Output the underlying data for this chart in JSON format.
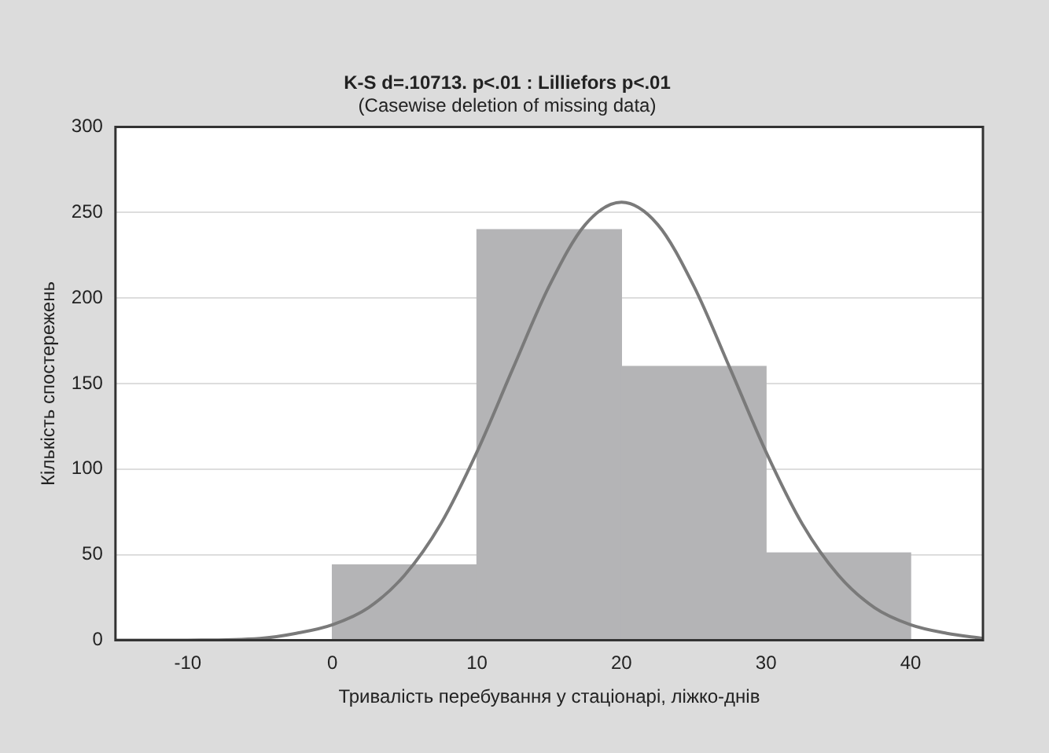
{
  "chart_data": {
    "type": "histogram",
    "title": "K-S d=.10713. p<.01 : Lilliefors p<.01",
    "subtitle": "(Casewise deletion of missing data)",
    "xlabel": "Тривалість перебування у стаціонарі, ліжко-днів",
    "ylabel": "Кількість спостережень",
    "bins": [
      0,
      10,
      20,
      30,
      40
    ],
    "values": [
      44,
      240,
      160,
      51
    ],
    "color": "#b4b4b6",
    "series": [
      {
        "type": "line",
        "color": "#7a7a7a",
        "x": [
          -15,
          -10,
          -5,
          -2.5,
          0,
          2.5,
          5,
          7.5,
          10,
          12.5,
          15,
          17.5,
          20,
          22.5,
          25,
          27.5,
          30,
          32.5,
          35,
          37.5,
          40,
          42.5,
          45
        ],
        "values": [
          0,
          0,
          1,
          4,
          9,
          19,
          38,
          68,
          110,
          159,
          207,
          243,
          256,
          243,
          207,
          159,
          110,
          68,
          38,
          19,
          9,
          4,
          1
        ]
      }
    ],
    "xlim": [
      -15,
      45
    ],
    "xticks": [
      -10,
      0,
      10,
      20,
      30,
      40
    ],
    "ylim": [
      0,
      300
    ],
    "yticks": [
      0,
      50,
      100,
      150,
      200,
      250,
      300
    ],
    "grid": "y",
    "legend": false
  }
}
